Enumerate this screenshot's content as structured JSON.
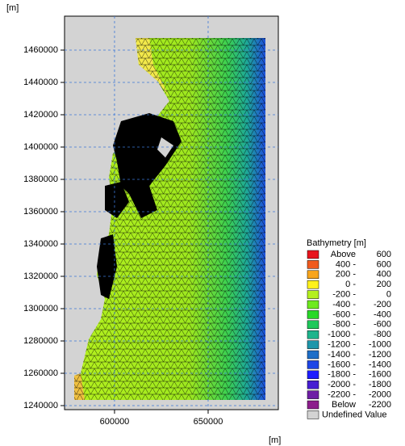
{
  "chart_data": {
    "type": "map",
    "y_unit": "[m]",
    "x_unit": "[m]",
    "xlim": [
      573300,
      687500
    ],
    "ylim": [
      1237500,
      1481000
    ],
    "xticks": [
      600000,
      650000
    ],
    "yticks": [
      1240000,
      1260000,
      1280000,
      1300000,
      1320000,
      1340000,
      1360000,
      1380000,
      1400000,
      1420000,
      1440000,
      1460000
    ],
    "grid": true,
    "legend": {
      "title": "Bathymetry [m]",
      "entries": [
        {
          "from": "Above",
          "to": "600",
          "color": "#e8141c"
        },
        {
          "from": "400 -",
          "to": "600",
          "color": "#f05a1e"
        },
        {
          "from": "200 -",
          "to": "400",
          "color": "#f8a51c"
        },
        {
          "from": "0 -",
          "to": "200",
          "color": "#fff21c"
        },
        {
          "from": "-200 -",
          "to": "0",
          "color": "#b4f01e"
        },
        {
          "from": "-400 -",
          "to": "-200",
          "color": "#6eea1e"
        },
        {
          "from": "-600 -",
          "to": "-400",
          "color": "#28d828"
        },
        {
          "from": "-800 -",
          "to": "-600",
          "color": "#1ec85a"
        },
        {
          "from": "-1000 -",
          "to": "-800",
          "color": "#1eb48c"
        },
        {
          "from": "-1200 -",
          "to": "-1000",
          "color": "#1e96aa"
        },
        {
          "from": "-1400 -",
          "to": "-1200",
          "color": "#1e6ec8"
        },
        {
          "from": "-1600 -",
          "to": "-1400",
          "color": "#1e46e6"
        },
        {
          "from": "-1800 -",
          "to": "-1600",
          "color": "#1e1eff"
        },
        {
          "from": "-2000 -",
          "to": "-1800",
          "color": "#461ed2"
        },
        {
          "from": "-2200 -",
          "to": "-2000",
          "color": "#6e1ea5"
        },
        {
          "from": "Below",
          "to": "-2200",
          "color": "#8c1e8c"
        },
        {
          "from": "Undefined Value",
          "color": "#d3d3d3"
        }
      ]
    }
  }
}
